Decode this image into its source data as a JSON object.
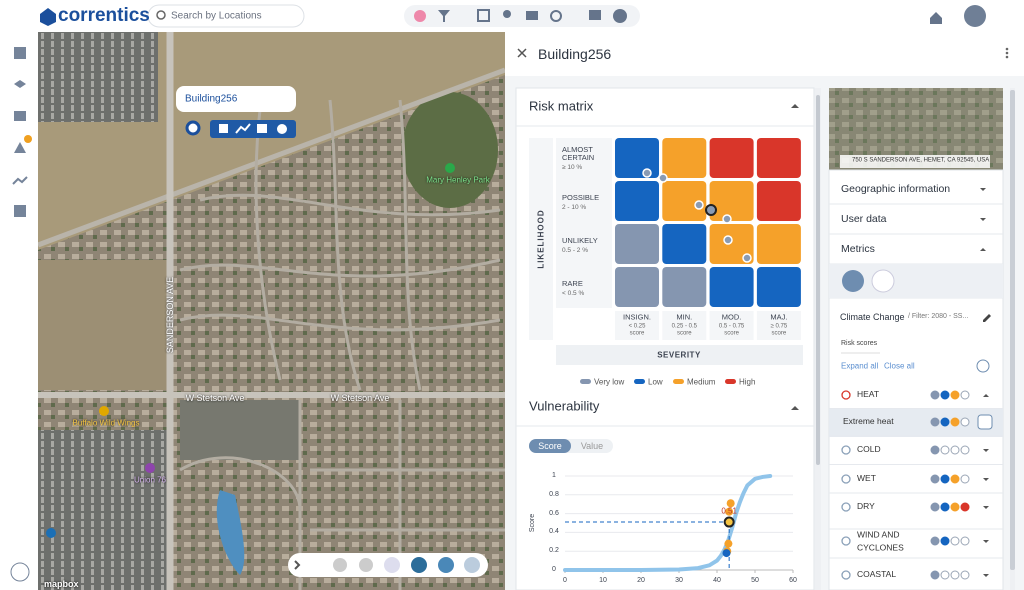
{
  "header": {
    "logo": "correntics",
    "search_placeholder": "Search by Locations"
  },
  "map": {
    "popup_title": "Building256",
    "labels": [
      "Mary Henley Park",
      "SANDERSON AVE",
      "W Stetson Ave",
      "W Stetson Ave",
      "Buffalo Wild Wings",
      "Union 76",
      "mapbox"
    ]
  },
  "panel": {
    "title": "Building256"
  },
  "risk_matrix": {
    "title": "Risk matrix",
    "y_axis_label": "LIKELIHOOD",
    "x_axis_label": "SEVERITY",
    "rows": [
      {
        "label": "ALMOST CERTAIN",
        "range": "≥ 10 %"
      },
      {
        "label": "POSSIBLE",
        "range": "2 - 10 %"
      },
      {
        "label": "UNLIKELY",
        "range": "0.5 - 2 %"
      },
      {
        "label": "RARE",
        "range": "< 0.5 %"
      }
    ],
    "columns": [
      {
        "label": "INSIGN.",
        "range": "< 0.25",
        "unit": "score"
      },
      {
        "label": "MIN.",
        "range": "0.25 - 0.5",
        "unit": "score"
      },
      {
        "label": "MOD.",
        "range": "0.5 - 0.75",
        "unit": "score"
      },
      {
        "label": "MAJ.",
        "range": "≥ 0.75",
        "unit": "score"
      }
    ],
    "cells": [
      [
        1,
        2,
        3,
        3
      ],
      [
        1,
        2,
        2,
        3
      ],
      [
        0,
        1,
        2,
        2
      ],
      [
        0,
        0,
        1,
        1
      ]
    ],
    "legend": [
      {
        "name": "Very low",
        "color": "#8596b0"
      },
      {
        "name": "Low",
        "color": "#1565c0"
      },
      {
        "name": "Medium",
        "color": "#f5a12a"
      },
      {
        "name": "High",
        "color": "#d9362a"
      }
    ]
  },
  "vulnerability": {
    "title": "Vulnerability",
    "tabs": [
      "Score",
      "Value"
    ],
    "chart_data": {
      "type": "scatter",
      "y_label": "Score",
      "xlim": [
        0,
        60
      ],
      "ylim": [
        0,
        1
      ],
      "xticks": [
        0,
        10,
        20,
        30,
        40,
        50,
        60
      ],
      "yticks": [
        0,
        0.2,
        0.4,
        0.6,
        0.8,
        1
      ],
      "curve": {
        "color": "#90c4ea",
        "x": [
          0,
          10,
          20,
          30,
          35,
          38,
          40,
          41,
          42,
          43,
          44,
          45,
          46,
          47,
          48,
          50,
          52,
          54
        ],
        "y": [
          0,
          0,
          0,
          0.005,
          0.02,
          0.05,
          0.1,
          0.15,
          0.22,
          0.32,
          0.45,
          0.6,
          0.72,
          0.82,
          0.9,
          0.97,
          0.99,
          1
        ]
      },
      "series": [
        {
          "color": "#f5a12a",
          "x": [
            43.6,
            43.2,
            43,
            42.7
          ],
          "y": [
            0.71,
            0.62,
            0.28,
            0.2
          ]
        },
        {
          "color": "#1565c0",
          "x": [
            42.5
          ],
          "y": [
            0.18
          ]
        }
      ],
      "selected": {
        "x": 43.2,
        "y": 0.51,
        "color": "#f5c342"
      }
    }
  },
  "sidebar": {
    "address": "750 S SANDERSON AVE, HEMET, CA 92545, USA",
    "sections": [
      "Geographic information",
      "User data",
      "Metrics"
    ],
    "metric": "Climate Change",
    "filter": "/ Filter: 2080 - SS...",
    "risk_scores": "Risk scores",
    "expand_all": "Expand all",
    "close_all": "Close all",
    "hazards": [
      {
        "name": "HEAT",
        "level": 3
      },
      {
        "name": "Extreme heat",
        "level": 3
      },
      {
        "name": "COLD",
        "level": 1
      },
      {
        "name": "WET",
        "level": 3
      },
      {
        "name": "DRY",
        "level": 4
      },
      {
        "name": "WIND AND CYCLONES",
        "level": 2
      },
      {
        "name": "COASTAL",
        "level": 1
      }
    ]
  }
}
